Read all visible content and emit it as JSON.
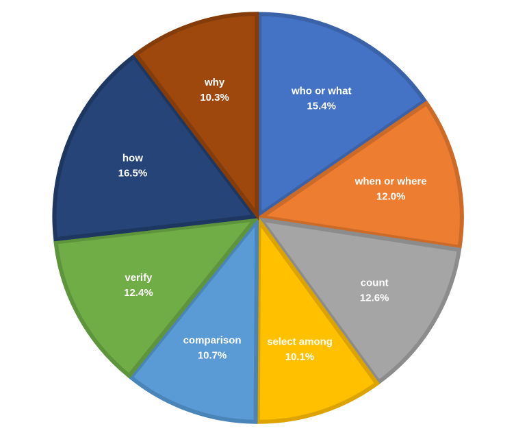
{
  "chart_data": {
    "type": "pie",
    "title": "",
    "legend": "none",
    "slices": [
      {
        "label": "who or what",
        "value": 15.4,
        "value_text": "15.4%",
        "color": "#4472C4",
        "border": "#3A62A8"
      },
      {
        "label": "when or where",
        "value": 12.0,
        "value_text": "12.0%",
        "color": "#ED7D31",
        "border": "#CC6A28"
      },
      {
        "label": "count",
        "value": 12.6,
        "value_text": "12.6%",
        "color": "#A5A5A5",
        "border": "#8C8C8C"
      },
      {
        "label": "select among",
        "value": 10.1,
        "value_text": "10.1%",
        "color": "#FFC000",
        "border": "#DDA400"
      },
      {
        "label": "comparison",
        "value": 10.7,
        "value_text": "10.7%",
        "color": "#5B9BD5",
        "border": "#4A85B9"
      },
      {
        "label": "verify",
        "value": 12.4,
        "value_text": "12.4%",
        "color": "#70AD47",
        "border": "#5E943B"
      },
      {
        "label": "how",
        "value": 16.5,
        "value_text": "16.5%",
        "color": "#264478",
        "border": "#1E3761"
      },
      {
        "label": "why",
        "value": 10.3,
        "value_text": "10.3%",
        "color": "#9E480E",
        "border": "#843C0B"
      }
    ]
  }
}
